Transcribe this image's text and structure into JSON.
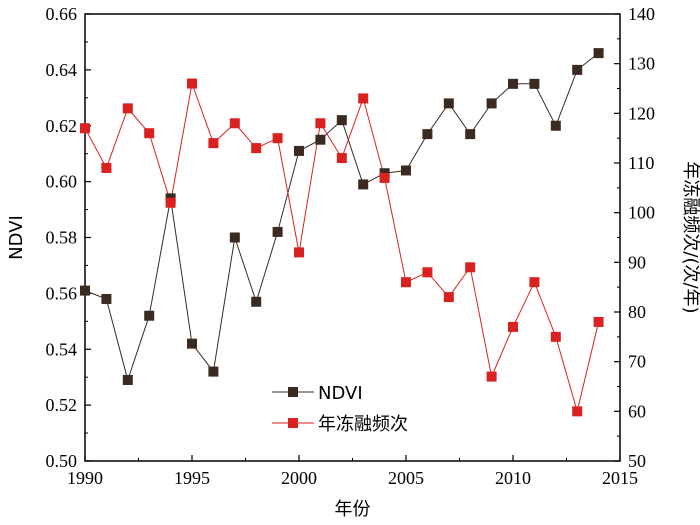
{
  "chart_data": {
    "type": "line",
    "xlabel": "年份",
    "ylabel_left": "NDVI",
    "ylabel_right": "年冻融频次/(次/年)",
    "xlim": [
      1990,
      2015
    ],
    "ylim_left": [
      0.5,
      0.66
    ],
    "ylim_right": [
      50,
      140
    ],
    "x_ticks": [
      1990,
      1995,
      2000,
      2005,
      2010,
      2015
    ],
    "y_left_ticks": [
      "0.50",
      "0.52",
      "0.54",
      "0.56",
      "0.58",
      "0.60",
      "0.62",
      "0.64",
      "0.66"
    ],
    "y_right_ticks": [
      50,
      60,
      70,
      80,
      90,
      100,
      110,
      120,
      130,
      140
    ],
    "grid": false,
    "legend_position": "bottom-center",
    "series": [
      {
        "name": "NDVI",
        "axis": "left",
        "color": "#3a2a22",
        "x": [
          1990,
          1991,
          1992,
          1993,
          1994,
          1995,
          1996,
          1997,
          1998,
          1999,
          2000,
          2001,
          2002,
          2003,
          2004,
          2005,
          2006,
          2007,
          2008,
          2009,
          2010,
          2011,
          2012,
          2013,
          2014
        ],
        "values": [
          0.561,
          0.558,
          0.529,
          0.552,
          0.594,
          0.542,
          0.532,
          0.58,
          0.557,
          0.582,
          0.611,
          0.615,
          0.622,
          0.599,
          0.603,
          0.604,
          0.617,
          0.628,
          0.617,
          0.628,
          0.635,
          0.635,
          0.62,
          0.64,
          0.646
        ]
      },
      {
        "name": "年冻融频次",
        "axis": "right",
        "color": "#d9211f",
        "x": [
          1990,
          1991,
          1992,
          1993,
          1994,
          1995,
          1996,
          1997,
          1998,
          1999,
          2000,
          2001,
          2002,
          2003,
          2004,
          2005,
          2006,
          2007,
          2008,
          2009,
          2010,
          2011,
          2012,
          2013,
          2014
        ],
        "values": [
          117,
          109,
          121,
          116,
          102,
          126,
          114,
          118,
          113,
          115,
          92,
          118,
          111,
          123,
          107,
          86,
          88,
          83,
          89,
          67,
          77,
          86,
          75,
          60,
          78
        ]
      }
    ]
  }
}
